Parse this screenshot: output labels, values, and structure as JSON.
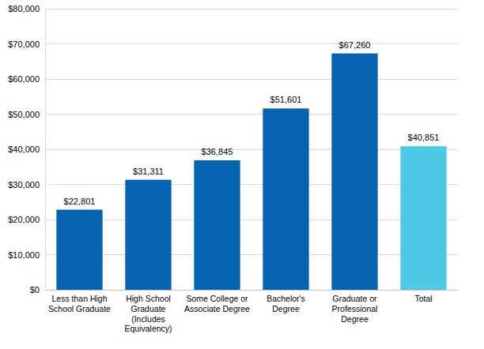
{
  "chart_data": {
    "type": "bar",
    "categories": [
      "Less than High School Graduate",
      "High School Graduate (Includes Equivalency)",
      "Some College or Associate Degree",
      "Bachelor's Degree",
      "Graduate or Professional Degree",
      "Total"
    ],
    "values": [
      22801,
      31311,
      36845,
      51601,
      67260,
      40851
    ],
    "value_labels": [
      "$22,801",
      "$31,311",
      "$36,845",
      "$51,601",
      "$67,260",
      "$40,851"
    ],
    "colors": [
      "#0563b0",
      "#0563b0",
      "#0563b0",
      "#0563b0",
      "#0563b0",
      "#4fc8e8"
    ],
    "ylim": [
      0,
      80000
    ],
    "yticks": [
      {
        "value": 0,
        "label": "$0"
      },
      {
        "value": 10000,
        "label": "$10,000"
      },
      {
        "value": 20000,
        "label": "$20,000"
      },
      {
        "value": 30000,
        "label": "$30,000"
      },
      {
        "value": 40000,
        "label": "$40,000"
      },
      {
        "value": 50000,
        "label": "$50,000"
      },
      {
        "value": 60000,
        "label": "$60,000"
      },
      {
        "value": 70000,
        "label": "$70,000"
      },
      {
        "value": 80000,
        "label": "$80,000"
      }
    ],
    "grid": true,
    "data_labels": true
  }
}
